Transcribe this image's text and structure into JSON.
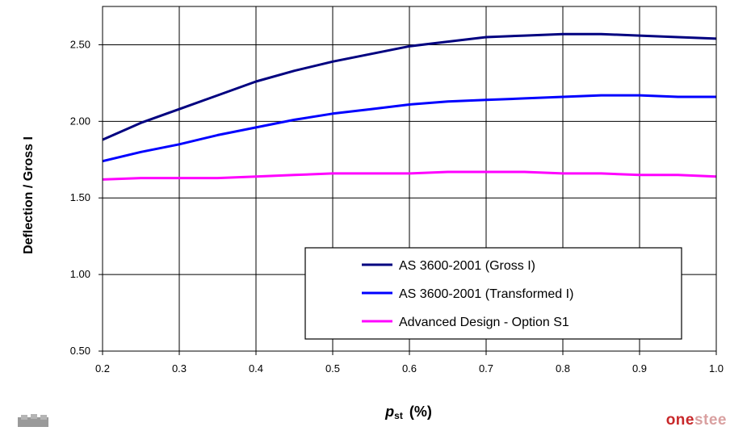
{
  "chart_data": {
    "type": "line",
    "title": "",
    "xlabel_main": "p",
    "xlabel_sub": "st",
    "xlabel_unit": "(%)",
    "ylabel": "Deflection / Gross I",
    "xlim": [
      0.2,
      1.0
    ],
    "ylim": [
      0.5,
      2.75
    ],
    "x_ticks": [
      0.2,
      0.3,
      0.4,
      0.5,
      0.6,
      0.7,
      0.8,
      0.9,
      1.0
    ],
    "x_tick_labels": [
      "0.2",
      "0.3",
      "0.4",
      "0.5",
      "0.6",
      "0.7",
      "0.8",
      "0.9",
      "1.0"
    ],
    "y_ticks": [
      0.5,
      1.0,
      1.5,
      2.0,
      2.5
    ],
    "y_tick_labels": [
      "0.50",
      "1.00",
      "1.50",
      "2.00",
      "2.50"
    ],
    "grid": true,
    "legend_position": "bottom-right",
    "x": [
      0.2,
      0.25,
      0.3,
      0.35,
      0.4,
      0.45,
      0.5,
      0.55,
      0.6,
      0.65,
      0.7,
      0.75,
      0.8,
      0.85,
      0.9,
      0.95,
      1.0
    ],
    "series": [
      {
        "name": "AS 3600-2001 (Gross I)",
        "color": "#000080",
        "values": [
          1.88,
          1.99,
          2.08,
          2.17,
          2.26,
          2.33,
          2.39,
          2.44,
          2.49,
          2.52,
          2.55,
          2.56,
          2.57,
          2.57,
          2.56,
          2.55,
          2.54
        ]
      },
      {
        "name": "AS 3600-2001 (Transformed I)",
        "color": "#0000ff",
        "values": [
          1.74,
          1.8,
          1.85,
          1.91,
          1.96,
          2.01,
          2.05,
          2.08,
          2.11,
          2.13,
          2.14,
          2.15,
          2.16,
          2.17,
          2.17,
          2.16,
          2.16
        ]
      },
      {
        "name": "Advanced Design - Option S1",
        "color": "#ff00ff",
        "values": [
          1.62,
          1.63,
          1.63,
          1.63,
          1.64,
          1.65,
          1.66,
          1.66,
          1.66,
          1.67,
          1.67,
          1.67,
          1.66,
          1.66,
          1.65,
          1.65,
          1.64
        ]
      }
    ]
  },
  "footer": {
    "right_logo_part1": "one",
    "right_logo_part2": "stee"
  }
}
